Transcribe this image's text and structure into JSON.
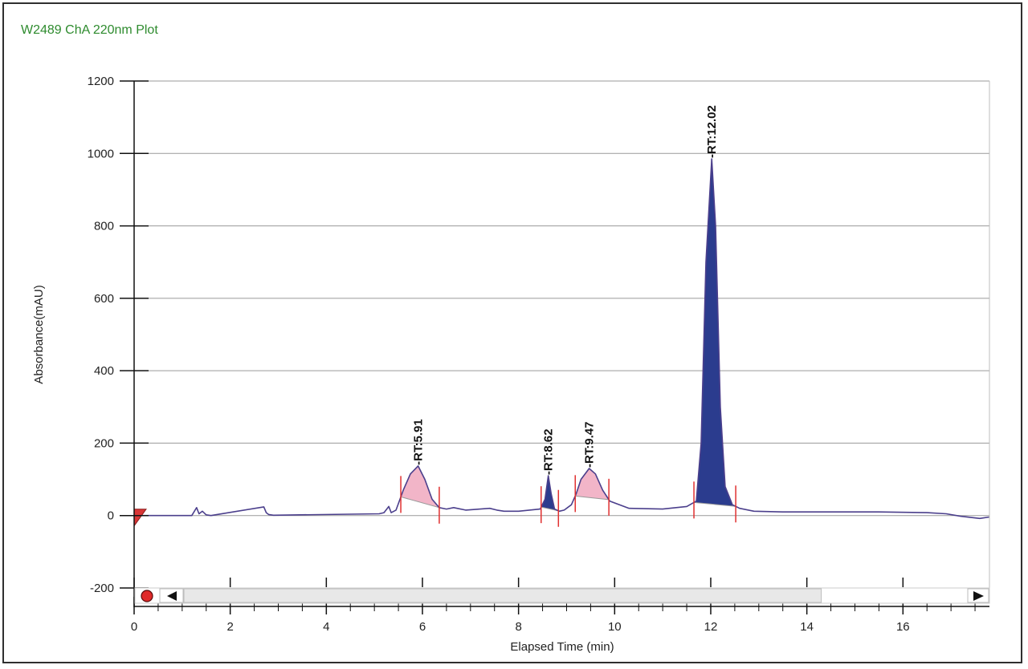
{
  "title": "W2489 ChA 220nm Plot",
  "colors": {
    "title": "#2e8b2e",
    "trace": "#4b3f8c",
    "peak_blue": "#2b3c8e",
    "peak_pink": "#f2b5c8",
    "marker": "#e03030",
    "grid": "#9a9a9a"
  },
  "scrollbar": {
    "left_arrow_icon": "left-triangle",
    "right_arrow_icon": "right-triangle",
    "record_icon": "red-circle",
    "thumb_end_min": 14.3
  },
  "chart_data": {
    "type": "line",
    "title": "W2489 ChA 220nm Plot",
    "xlabel": "Elapsed Time (min)",
    "ylabel": "Absorbance(mAU)",
    "xlim": [
      0,
      17.8
    ],
    "ylim": [
      -200,
      1200
    ],
    "xticks": [
      0,
      2,
      4,
      6,
      8,
      10,
      12,
      14,
      16
    ],
    "yticks": [
      -200,
      0,
      200,
      400,
      600,
      800,
      1000,
      1200
    ],
    "grid": "horizontal",
    "series": [
      {
        "x": [
          0.0,
          1.2,
          1.3,
          1.35,
          1.42,
          1.5,
          1.6,
          2.7,
          2.75,
          2.8,
          2.9,
          5.1,
          5.2,
          5.3,
          5.35,
          5.45,
          5.6,
          5.75,
          5.91,
          6.05,
          6.2,
          6.35,
          6.5,
          6.65,
          6.9,
          7.4,
          7.55,
          7.7,
          8.0,
          8.45,
          8.55,
          8.62,
          8.68,
          8.75,
          8.85,
          8.95,
          9.1,
          9.2,
          9.3,
          9.47,
          9.6,
          9.75,
          9.9,
          10.3,
          11.0,
          11.5,
          11.7,
          11.8,
          11.9,
          12.02,
          12.1,
          12.2,
          12.3,
          12.45,
          12.6,
          12.9,
          13.5,
          14.5,
          15.5,
          16.5,
          16.9,
          17.2,
          17.6,
          17.8
        ],
        "y": [
          0,
          0,
          22,
          5,
          12,
          2,
          0,
          24,
          8,
          3,
          1,
          5,
          8,
          25,
          8,
          15,
          70,
          115,
          137,
          100,
          45,
          22,
          18,
          22,
          15,
          20,
          15,
          12,
          12,
          18,
          45,
          110,
          60,
          18,
          12,
          15,
          30,
          60,
          100,
          130,
          115,
          70,
          40,
          20,
          18,
          25,
          40,
          200,
          700,
          985,
          800,
          300,
          80,
          30,
          20,
          12,
          10,
          10,
          10,
          8,
          5,
          -2,
          -8,
          -4
        ]
      }
    ],
    "peaks": [
      {
        "label": "-RT:5.91",
        "rt": 5.91,
        "start": 5.55,
        "end": 6.35,
        "fill": "pink"
      },
      {
        "label": "-RT:8.62",
        "rt": 8.62,
        "start": 8.47,
        "end": 8.83,
        "fill": "blue"
      },
      {
        "label": "-RT:9.47",
        "rt": 9.47,
        "start": 9.18,
        "end": 9.88,
        "fill": "pink"
      },
      {
        "label": "-RT:12.02",
        "rt": 12.02,
        "start": 11.65,
        "end": 12.52,
        "fill": "blue"
      }
    ]
  }
}
